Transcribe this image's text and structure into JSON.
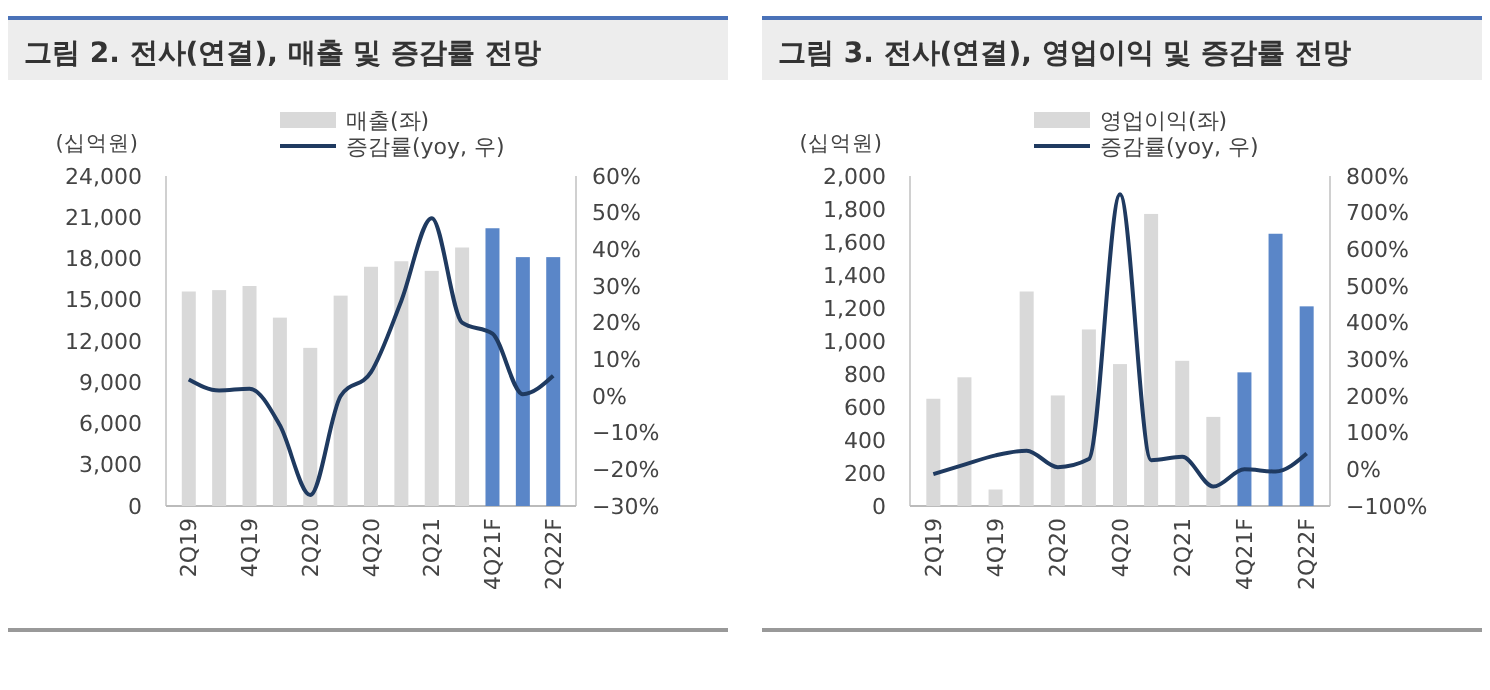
{
  "chart_data": [
    {
      "type": "bar",
      "title": "그림 2.  전사(연결), 매출 및 증감률 전망",
      "ylabel": "(십억원)",
      "legend": "top",
      "categories": [
        "2Q19",
        null,
        "4Q19",
        null,
        "2Q20",
        null,
        "4Q20",
        null,
        "2Q21",
        null,
        "4Q21F",
        null,
        "2Q22F"
      ],
      "ylim": [
        0,
        24000
      ],
      "yticks": [
        {
          "value": 0,
          "label": "0"
        },
        {
          "value": 3000,
          "label": "3,000"
        },
        {
          "value": 6000,
          "label": "6,000"
        },
        {
          "value": 9000,
          "label": "9,000"
        },
        {
          "value": 12000,
          "label": "12,000"
        },
        {
          "value": 15000,
          "label": "15,000"
        },
        {
          "value": 18000,
          "label": "18,000"
        },
        {
          "value": 21000,
          "label": "21,000"
        },
        {
          "value": 24000,
          "label": "24,000"
        }
      ],
      "y2lim": [
        -30,
        60
      ],
      "y2ticks": [
        {
          "value": -30,
          "label": "−30%"
        },
        {
          "value": -20,
          "label": "−20%"
        },
        {
          "value": -10,
          "label": "−10%"
        },
        {
          "value": 0,
          "label": "0%"
        },
        {
          "value": 10,
          "label": "10%"
        },
        {
          "value": 20,
          "label": "20%"
        },
        {
          "value": 30,
          "label": "30%"
        },
        {
          "value": 40,
          "label": "40%"
        },
        {
          "value": 50,
          "label": "50%"
        },
        {
          "value": 60,
          "label": "60%"
        }
      ],
      "series": [
        {
          "name": "매출(좌)",
          "colors": [
            "#d9d9d9",
            "#d9d9d9",
            "#d9d9d9",
            "#d9d9d9",
            "#d9d9d9",
            "#d9d9d9",
            "#d9d9d9",
            "#d9d9d9",
            "#d9d9d9",
            "#d9d9d9",
            "#5a86c8",
            "#5a86c8",
            "#5a86c8"
          ],
          "values": [
            15600,
            15700,
            16000,
            13700,
            11500,
            15300,
            17400,
            17800,
            17100,
            18800,
            20200,
            18100,
            18100
          ]
        },
        {
          "name": "증감률(yoy, 우)",
          "type": "line",
          "axis": "y2",
          "color": "#1f3a60",
          "values": [
            4.5,
            1.5,
            2,
            -8,
            -27,
            0,
            6.5,
            26,
            48.5,
            20,
            17,
            0.5,
            5.5
          ]
        }
      ]
    },
    {
      "type": "bar",
      "title": "그림 3.  전사(연결), 영업이익 및 증감률 전망",
      "ylabel": "(십억원)",
      "legend": "top",
      "categories": [
        "2Q19",
        null,
        "4Q19",
        null,
        "2Q20",
        null,
        "4Q20",
        null,
        "2Q21",
        null,
        "4Q21F",
        null,
        "2Q22F"
      ],
      "ylim": [
        0,
        2000
      ],
      "yticks": [
        {
          "value": 0,
          "label": "0"
        },
        {
          "value": 200,
          "label": "200"
        },
        {
          "value": 400,
          "label": "400"
        },
        {
          "value": 600,
          "label": "600"
        },
        {
          "value": 800,
          "label": "800"
        },
        {
          "value": 1000,
          "label": "1,000"
        },
        {
          "value": 1200,
          "label": "1,200"
        },
        {
          "value": 1400,
          "label": "1,400"
        },
        {
          "value": 1600,
          "label": "1,600"
        },
        {
          "value": 1800,
          "label": "1,800"
        },
        {
          "value": 2000,
          "label": "2,000"
        }
      ],
      "y2lim": [
        -100,
        800
      ],
      "y2ticks": [
        {
          "value": -100,
          "label": "−100%"
        },
        {
          "value": 0,
          "label": "0%"
        },
        {
          "value": 100,
          "label": "100%"
        },
        {
          "value": 200,
          "label": "200%"
        },
        {
          "value": 300,
          "label": "300%"
        },
        {
          "value": 400,
          "label": "400%"
        },
        {
          "value": 500,
          "label": "500%"
        },
        {
          "value": 600,
          "label": "600%"
        },
        {
          "value": 700,
          "label": "700%"
        },
        {
          "value": 800,
          "label": "800%"
        }
      ],
      "series": [
        {
          "name": "영업이익(좌)",
          "colors": [
            "#d9d9d9",
            "#d9d9d9",
            "#d9d9d9",
            "#d9d9d9",
            "#d9d9d9",
            "#d9d9d9",
            "#d9d9d9",
            "#d9d9d9",
            "#d9d9d9",
            "#d9d9d9",
            "#5a86c8",
            "#5a86c8",
            "#5a86c8"
          ],
          "values": [
            650,
            780,
            100,
            1300,
            670,
            1070,
            860,
            1770,
            880,
            540,
            810,
            1650,
            1210
          ]
        },
        {
          "name": "증감률(yoy, 우)",
          "type": "line",
          "axis": "y2",
          "color": "#1f3a60",
          "values": [
            -13,
            13,
            38,
            51,
            6,
            28,
            750,
            25,
            34,
            -47,
            0,
            -6,
            43
          ]
        }
      ]
    }
  ]
}
